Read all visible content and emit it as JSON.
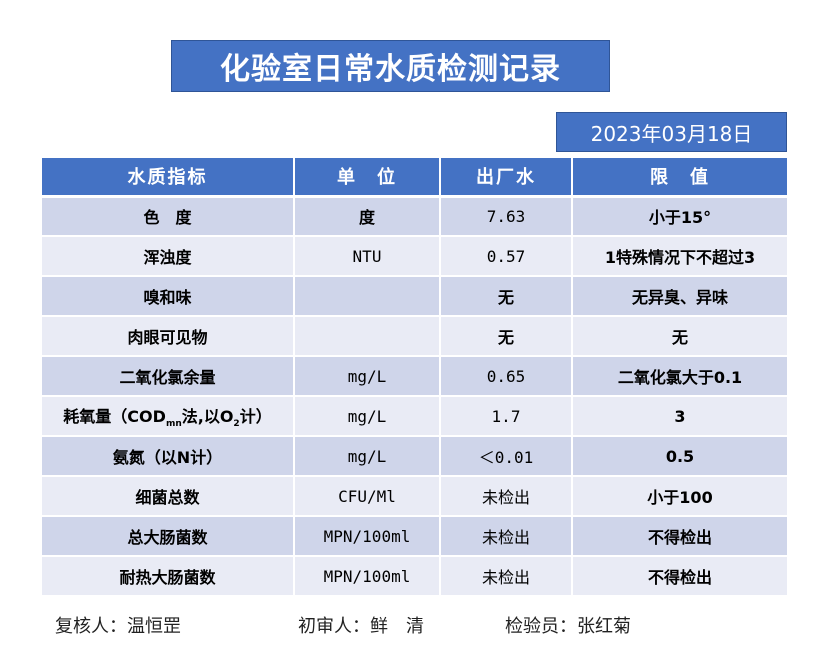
{
  "title": "化验室日常水质检测记录",
  "date": "2023年03月18日",
  "headers": {
    "indicator": "水质指标",
    "unit": "单　位",
    "factory": "出厂水",
    "limit": "限　值"
  },
  "rows": [
    {
      "indicator": "色　度",
      "unit": "度",
      "factory": "7.63",
      "limit": "小于15°"
    },
    {
      "indicator": "浑浊度",
      "unit": "NTU",
      "factory": "0.57",
      "limit": "1特殊情况下不超过3"
    },
    {
      "indicator": "嗅和味",
      "unit": "",
      "factory": "无",
      "limit": "无异臭、异味"
    },
    {
      "indicator": "肉眼可见物",
      "unit": "",
      "factory": "无",
      "limit": "无"
    },
    {
      "indicator": "二氧化氯余量",
      "unit": "mg/L",
      "factory": "0.65",
      "limit": "二氧化氯大于0.1"
    },
    {
      "indicator_parts": {
        "pre": "耗氧量（COD",
        "sub1": "mn",
        "mid": "法,以O",
        "sub2": "2",
        "post": "计）"
      },
      "unit": "mg/L",
      "factory": "1.7",
      "limit": "3"
    },
    {
      "indicator": "氨氮（以N计）",
      "unit": "mg/L",
      "factory": "＜0.01",
      "limit": "0.5"
    },
    {
      "indicator": "细菌总数",
      "unit": "CFU/Ml",
      "factory": "未检出",
      "limit": "小于100"
    },
    {
      "indicator": "总大肠菌数",
      "unit": "MPN/100ml",
      "factory": "未检出",
      "limit": "不得检出"
    },
    {
      "indicator": "耐热大肠菌数",
      "unit": "MPN/100ml",
      "factory": "未检出",
      "limit": "不得检出"
    }
  ],
  "footer": {
    "reviewer": "复核人：温恒罡",
    "preliminary": "初审人：鲜　清",
    "inspector": "检验员：张红菊"
  }
}
